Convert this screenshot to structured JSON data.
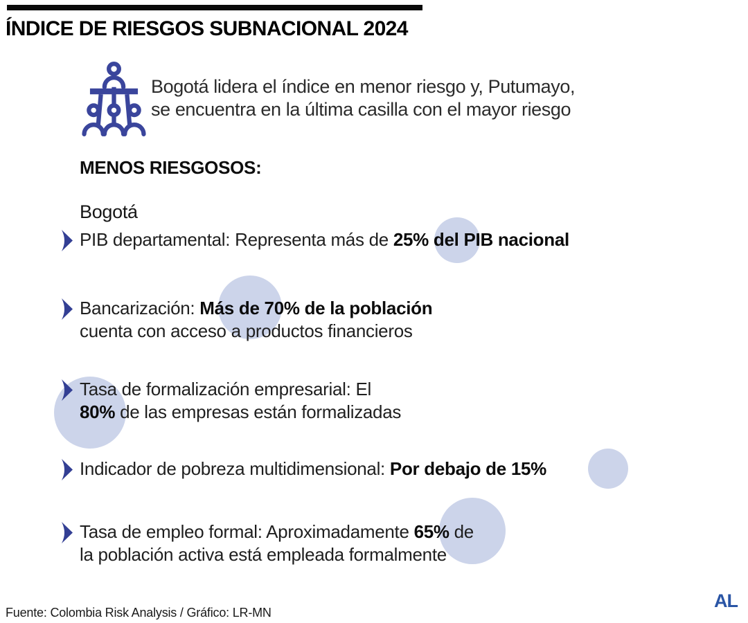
{
  "header": {
    "title": "ÍNDICE DE RIESGOS SUBNACIONAL 2024"
  },
  "intro": {
    "icon": "podium-audience-icon",
    "line1": "Bogotá lidera el índice en menor riesgo y, Putumayo,",
    "line2": "se encuentra en la última casilla con el mayor riesgo"
  },
  "section": {
    "label": "MENOS RIESGOSOS:",
    "subsection": "Bogotá"
  },
  "bullets": [
    {
      "lines": [
        [
          {
            "t": "PIB departamental: Representa más de ",
            "b": false
          },
          {
            "t": "25% del PIB nacional",
            "b": true
          }
        ]
      ]
    },
    {
      "lines": [
        [
          {
            "t": "Bancarización: ",
            "b": false
          },
          {
            "t": "Más de 70% de la población",
            "b": true
          }
        ],
        [
          {
            "t": "cuenta con acceso a productos financieros",
            "b": false
          }
        ]
      ]
    },
    {
      "lines": [
        [
          {
            "t": "Tasa de formalización empresarial: El",
            "b": false
          }
        ],
        [
          {
            "t": "80%",
            "b": true
          },
          {
            "t": " de las empresas están formalizadas",
            "b": false
          }
        ]
      ]
    },
    {
      "lines": [
        [
          {
            "t": "Indicador de pobreza multidimensional: ",
            "b": false
          },
          {
            "t": "Por debajo de 15%",
            "b": true
          }
        ]
      ]
    },
    {
      "lines": [
        [
          {
            "t": "Tasa de empleo formal: Aproximadamente ",
            "b": false
          },
          {
            "t": "65%",
            "b": true
          },
          {
            "t": " de",
            "b": false
          }
        ],
        [
          {
            "t": "la población activa está empleada formalmente",
            "b": false
          }
        ]
      ]
    }
  ],
  "highlight_stats": [
    "25%",
    "70%",
    "80%",
    "15%",
    "65%"
  ],
  "footer": {
    "source": "Fuente: Colombia Risk Analysis / Gráfico: LR-MN",
    "logo": "AL"
  },
  "colors": {
    "accent_indigo": "#3a459c",
    "arrow_indigo": "#333f94",
    "highlight_circle": "#ccd4ea",
    "logo_blue": "#2a55a5",
    "top_bar": "#0a0a0a"
  }
}
